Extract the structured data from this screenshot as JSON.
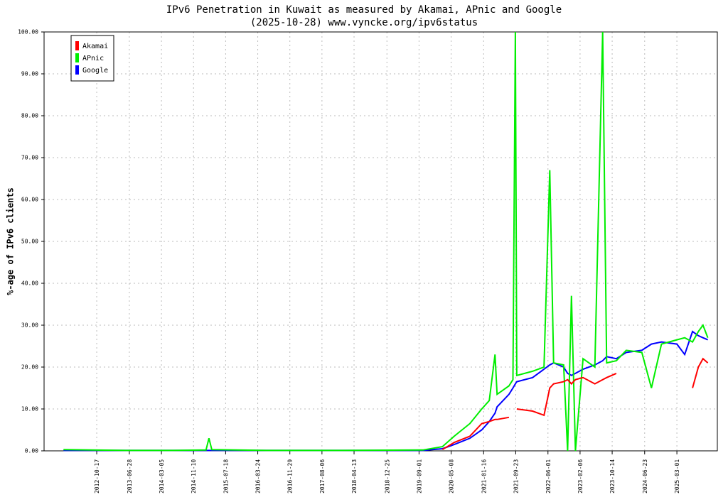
{
  "chart_data": {
    "type": "line",
    "title": "IPv6 Penetration in Kuwait as measured by Akamai, APnic and Google",
    "subtitle": "(2025-10-28) www.vyncke.org/ipv6status",
    "y_label": "%-age of IPv6 clients",
    "legend": "top-left",
    "grid": true,
    "x": [
      "2012-02-01",
      "2013-06-01",
      "2014-06-01",
      "2015-02-15",
      "2015-03-10",
      "2015-04-01",
      "2016-06-01",
      "2018-01-01",
      "2019-10-01",
      "2020-03-01",
      "2020-06-01",
      "2020-10-01",
      "2021-01-01",
      "2021-03-01",
      "2021-04-15",
      "2021-05-01",
      "2021-08-01",
      "2021-09-01",
      "2021-09-20",
      "2021-10-01",
      "2022-02-01",
      "2022-05-01",
      "2022-06-15",
      "2022-07-15",
      "2022-10-01",
      "2022-11-01",
      "2022-12-01",
      "2023-01-01",
      "2023-03-01",
      "2023-06-01",
      "2023-08-01",
      "2023-09-01",
      "2023-11-15",
      "2024-02-01",
      "2024-06-01",
      "2024-08-15",
      "2024-11-01",
      "2025-03-01",
      "2025-05-01",
      "2025-07-01",
      "2025-08-15",
      "2025-09-20",
      "2025-10-28"
    ],
    "series": [
      {
        "name": "Akamai",
        "color": "#ff0000",
        "values": [
          null,
          null,
          null,
          null,
          null,
          null,
          null,
          null,
          null,
          0.3,
          2.0,
          3.5,
          6.5,
          7.0,
          7.5,
          7.5,
          8.0,
          null,
          null,
          10.0,
          9.5,
          8.5,
          15.0,
          16.0,
          16.5,
          17.0,
          16.0,
          17.0,
          17.5,
          16.0,
          17.0,
          17.5,
          18.5,
          null,
          null,
          null,
          null,
          null,
          null,
          15.0,
          20.0,
          22.0,
          21.0
        ]
      },
      {
        "name": "APnic",
        "color": "#00ee00",
        "values": [
          0.3,
          0.1,
          0.1,
          0.2,
          3.0,
          0.3,
          0.1,
          0.1,
          0.2,
          1.0,
          3.5,
          6.5,
          10.0,
          12.0,
          23.0,
          13.5,
          15.5,
          17.0,
          100,
          18.0,
          19.0,
          20.0,
          67,
          21.0,
          20.5,
          0,
          37,
          0,
          22.0,
          20.0,
          100,
          21.0,
          21.5,
          24.0,
          23.5,
          15.0,
          25.5,
          26.5,
          27.0,
          26.0,
          28.5,
          30.0,
          27.0
        ]
      },
      {
        "name": "Google",
        "color": "#0000ff",
        "values": [
          0.1,
          0.1,
          0.1,
          0.1,
          0.1,
          0.1,
          0.1,
          0.1,
          0.1,
          0.5,
          1.5,
          3.0,
          5.0,
          7.0,
          9.0,
          10.5,
          13.5,
          15.0,
          16.0,
          16.5,
          17.5,
          19.5,
          20.5,
          21.0,
          20.0,
          18.5,
          18.0,
          18.5,
          19.5,
          20.5,
          21.5,
          22.5,
          22.0,
          23.5,
          24.0,
          25.5,
          26.0,
          25.5,
          23.0,
          28.5,
          27.5,
          27.0,
          26.5
        ]
      }
    ],
    "xlim": [
      "2011-09-03",
      "2026-01-10"
    ],
    "xticks": [
      "2012-10-17",
      "2013-06-28",
      "2014-03-05",
      "2014-11-10",
      "2015-07-18",
      "2016-03-24",
      "2016-11-29",
      "2017-08-06",
      "2018-04-13",
      "2018-12-25",
      "2019-09-01",
      "2020-05-08",
      "2021-01-16",
      "2021-09-23",
      "2022-06-01",
      "2023-02-06",
      "2023-10-14",
      "2024-06-23",
      "2025-03-01"
    ],
    "ylim": [
      0,
      100
    ],
    "yticks": [
      {
        "value": 0,
        "label": "0.00"
      },
      {
        "value": 10,
        "label": "10.00"
      },
      {
        "value": 20,
        "label": "20.00"
      },
      {
        "value": 30,
        "label": "30.00"
      },
      {
        "value": 40,
        "label": "40.00"
      },
      {
        "value": 50,
        "label": "50.00"
      },
      {
        "value": 60,
        "label": "60.00"
      },
      {
        "value": 70,
        "label": "70.00"
      },
      {
        "value": 80,
        "label": "80.00"
      },
      {
        "value": 90,
        "label": "90.00"
      },
      {
        "value": 100,
        "label": "100.00"
      }
    ]
  }
}
